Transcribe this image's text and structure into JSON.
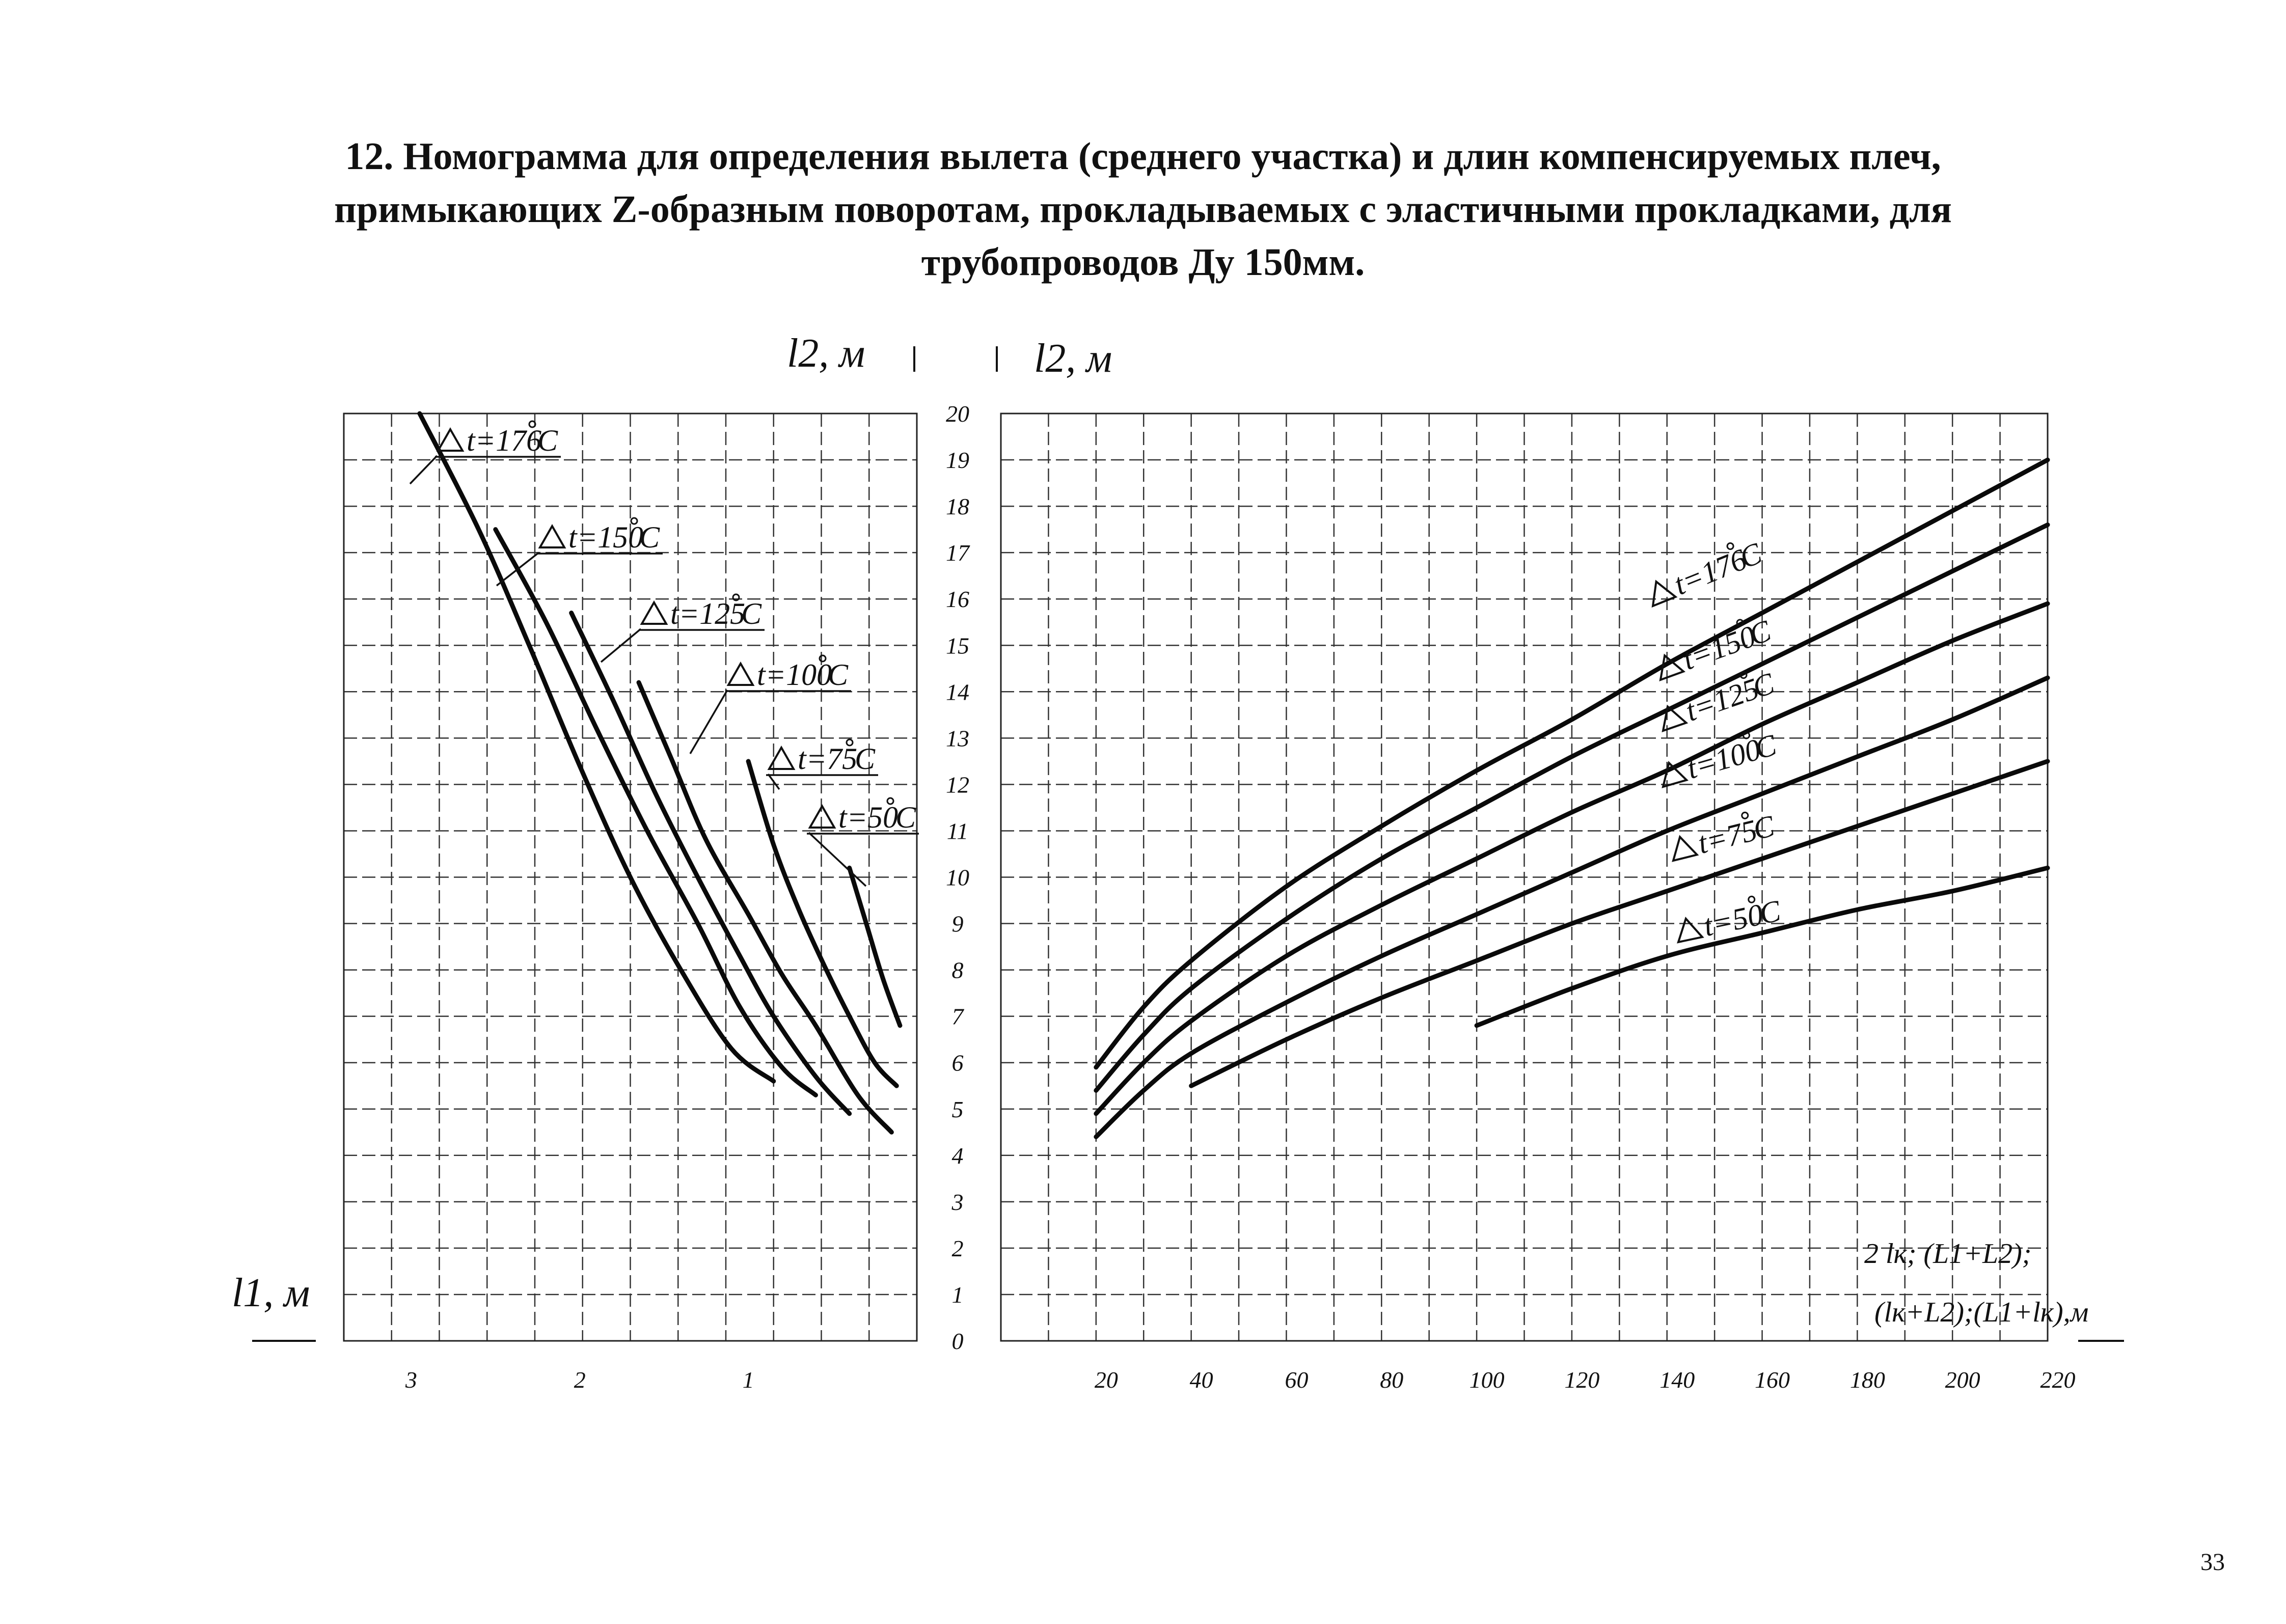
{
  "title": {
    "line1": "12. Номограмма для определения вылета (среднего участка) и длин компенсируемых плеч,",
    "line2": "примыкающих Z-образным поворотам, прокладываемых с эластичными прокладками, для",
    "line3": "трубопроводов Ду 150мм."
  },
  "page_number": "33",
  "chart_data": [
    {
      "type": "line",
      "panel": "left",
      "xlabel": "l1, м",
      "ylabel": "l2, м",
      "x_ticks": [
        "3",
        "2",
        "1"
      ],
      "xlim": [
        3.4,
        0
      ],
      "x_direction": "reversed",
      "ylim": [
        0,
        20
      ],
      "series": [
        {
          "name": "Δt=176°C",
          "label": "t=176",
          "x": [
            2.95,
            2.6,
            2.3,
            2.0,
            1.7,
            1.4,
            1.1,
            0.85
          ],
          "y": [
            20,
            17.5,
            15,
            12.4,
            10,
            8,
            6.3,
            5.6
          ]
        },
        {
          "name": "Δt=150°C",
          "label": "t=150",
          "x": [
            2.5,
            2.2,
            1.9,
            1.6,
            1.3,
            1.05,
            0.8,
            0.6
          ],
          "y": [
            17.5,
            15.5,
            13.2,
            11,
            9,
            7.2,
            5.9,
            5.3
          ]
        },
        {
          "name": "Δt=125°C",
          "label": "t=125",
          "x": [
            2.05,
            1.8,
            1.55,
            1.3,
            1.05,
            0.85,
            0.6,
            0.4
          ],
          "y": [
            15.7,
            13.8,
            11.8,
            10,
            8.3,
            7,
            5.7,
            4.9
          ]
        },
        {
          "name": "Δt=100°C",
          "label": "t=100",
          "x": [
            1.65,
            1.45,
            1.25,
            1.0,
            0.8,
            0.6,
            0.35,
            0.15
          ],
          "y": [
            14.2,
            12.5,
            10.8,
            9.2,
            7.9,
            6.8,
            5.3,
            4.5
          ]
        },
        {
          "name": "Δt=75°C",
          "label": "t=75",
          "x": [
            1.0,
            0.85,
            0.7,
            0.55,
            0.4,
            0.25,
            0.12
          ],
          "y": [
            12.5,
            10.7,
            9.3,
            8.1,
            7.0,
            6.0,
            5.5
          ]
        },
        {
          "name": "Δt=50°C",
          "label": "t=50",
          "x": [
            0.4,
            0.3,
            0.2,
            0.1
          ],
          "y": [
            10.2,
            9.0,
            7.8,
            6.8
          ]
        }
      ]
    },
    {
      "type": "line",
      "panel": "right",
      "xlabel_line1": "2 lк; (L1+L2);",
      "xlabel_line2": "(lк+L2);(L1+lк),м",
      "ylabel": "l2, м",
      "x_ticks": [
        "20",
        "40",
        "60",
        "80",
        "100",
        "120",
        "140",
        "160",
        "180",
        "200",
        "220"
      ],
      "y_ticks": [
        "0",
        "1",
        "2",
        "3",
        "4",
        "5",
        "6",
        "7",
        "8",
        "9",
        "10",
        "11",
        "12",
        "13",
        "14",
        "15",
        "16",
        "17",
        "18",
        "19",
        "20"
      ],
      "xlim": [
        0,
        220
      ],
      "ylim": [
        0,
        20
      ],
      "series": [
        {
          "name": "Δt=176°C",
          "label": "t=176",
          "x": [
            20,
            30,
            40,
            60,
            80,
            100,
            120,
            140,
            160,
            180,
            200,
            220
          ],
          "y": [
            5.9,
            7.2,
            8.2,
            9.8,
            11.1,
            12.3,
            13.4,
            14.6,
            15.7,
            16.8,
            17.9,
            19.0
          ]
        },
        {
          "name": "Δt=150°C",
          "label": "t=150",
          "x": [
            20,
            30,
            40,
            60,
            80,
            100,
            120,
            140,
            160,
            180,
            200,
            220
          ],
          "y": [
            5.4,
            6.6,
            7.6,
            9.1,
            10.4,
            11.5,
            12.6,
            13.6,
            14.6,
            15.6,
            16.6,
            17.6
          ]
        },
        {
          "name": "Δt=125°C",
          "label": "t=125",
          "x": [
            20,
            30,
            40,
            60,
            80,
            100,
            120,
            140,
            160,
            180,
            200,
            220
          ],
          "y": [
            4.9,
            6.0,
            6.9,
            8.3,
            9.4,
            10.4,
            11.4,
            12.3,
            13.3,
            14.2,
            15.1,
            15.9
          ]
        },
        {
          "name": "Δt=100°C",
          "label": "t=100",
          "x": [
            20,
            30,
            40,
            60,
            80,
            100,
            120,
            140,
            160,
            180,
            200,
            220
          ],
          "y": [
            4.4,
            5.4,
            6.2,
            7.3,
            8.3,
            9.2,
            10.1,
            11.0,
            11.8,
            12.6,
            13.4,
            14.3
          ]
        },
        {
          "name": "Δt=75°C",
          "label": "t=75",
          "x": [
            40,
            60,
            80,
            100,
            120,
            140,
            160,
            180,
            200,
            220
          ],
          "y": [
            5.5,
            6.5,
            7.4,
            8.2,
            9.0,
            9.7,
            10.4,
            11.1,
            11.8,
            12.5
          ]
        },
        {
          "name": "Δt=50°C",
          "label": "t=50",
          "x": [
            100,
            120,
            140,
            160,
            180,
            200,
            220
          ],
          "y": [
            6.8,
            7.6,
            8.3,
            8.8,
            9.3,
            9.7,
            10.2
          ]
        }
      ]
    }
  ],
  "labels": {
    "left_ylabel": "l2, м",
    "right_ylabel": "l2, м",
    "left_xlabel": "l1, м",
    "degree_c": "C"
  }
}
